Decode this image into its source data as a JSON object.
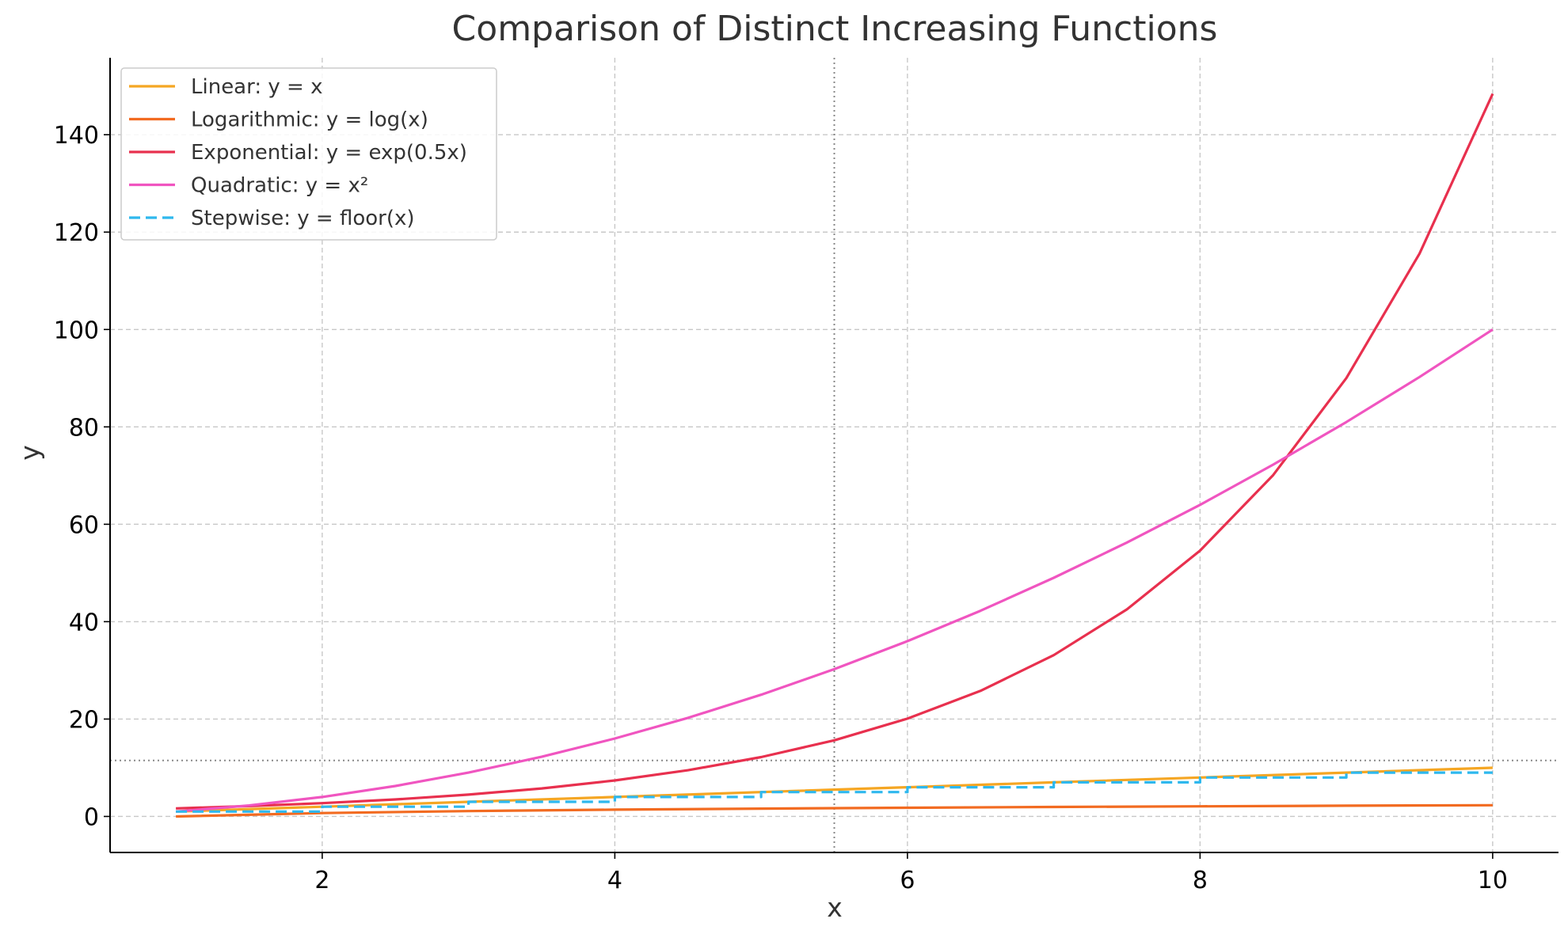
{
  "chart_data": {
    "type": "line",
    "title": "Comparison of Distinct Increasing Functions",
    "xlabel": "x",
    "ylabel": "y",
    "xlim": [
      0.55,
      10.45
    ],
    "ylim": [
      -7.4,
      155.8
    ],
    "x_ticks": [
      2,
      4,
      6,
      8,
      10
    ],
    "x_tick_labels": [
      "2",
      "4",
      "6",
      "8",
      "10"
    ],
    "y_ticks": [
      0,
      20,
      40,
      60,
      80,
      100,
      120,
      140
    ],
    "y_tick_labels": [
      "0",
      "20",
      "40",
      "60",
      "80",
      "100",
      "120",
      "140"
    ],
    "grid": true,
    "legend_position": "top-left",
    "reference_lines": [
      {
        "axis": "x",
        "value": 5.5,
        "style": "dotted"
      },
      {
        "axis": "y",
        "value": 11.5,
        "style": "dotted"
      }
    ],
    "series": [
      {
        "name": "Linear: y = x",
        "color": "#F5A623",
        "style": "solid",
        "x": [
          1,
          2,
          3,
          4,
          5,
          6,
          7,
          8,
          9,
          10
        ],
        "y": [
          1,
          2,
          3,
          4,
          5,
          6,
          7,
          8,
          9,
          10
        ]
      },
      {
        "name": "Logarithmic: y = log(x)",
        "color": "#F26B21",
        "style": "solid",
        "x": [
          1,
          2,
          3,
          4,
          5,
          6,
          7,
          8,
          9,
          10
        ],
        "y": [
          0,
          0.69,
          1.1,
          1.39,
          1.61,
          1.79,
          1.95,
          2.08,
          2.2,
          2.3
        ]
      },
      {
        "name": "Exponential: y = exp(0.5x)",
        "color": "#E8304E",
        "style": "solid",
        "x": [
          1,
          1.5,
          2,
          2.5,
          3,
          3.5,
          4,
          4.5,
          5,
          5.5,
          6,
          6.5,
          7,
          7.5,
          8,
          8.5,
          9,
          9.5,
          10
        ],
        "y": [
          1.65,
          2.12,
          2.72,
          3.49,
          4.48,
          5.75,
          7.39,
          9.49,
          12.18,
          15.64,
          20.09,
          25.79,
          33.12,
          42.52,
          54.6,
          70.11,
          90.02,
          115.58,
          148.41
        ]
      },
      {
        "name": "Quadratic: y = x²",
        "color": "#F055C0",
        "style": "solid",
        "x": [
          1,
          1.5,
          2,
          2.5,
          3,
          3.5,
          4,
          4.5,
          5,
          5.5,
          6,
          6.5,
          7,
          7.5,
          8,
          8.5,
          9,
          9.5,
          10
        ],
        "y": [
          1,
          2.25,
          4,
          6.25,
          9,
          12.25,
          16,
          20.25,
          25,
          30.25,
          36,
          42.25,
          49,
          56.25,
          64,
          72.25,
          81,
          90.25,
          100
        ]
      },
      {
        "name": "Stepwise: y = floor(x)",
        "color": "#2EB8EE",
        "style": "dashed",
        "x": [
          1,
          2,
          2,
          3,
          3,
          4,
          4,
          5,
          5,
          6,
          6,
          7,
          7,
          8,
          8,
          9,
          9,
          10
        ],
        "y": [
          1,
          1,
          2,
          2,
          3,
          3,
          4,
          4,
          5,
          5,
          6,
          6,
          7,
          7,
          8,
          8,
          9,
          9
        ]
      }
    ]
  }
}
